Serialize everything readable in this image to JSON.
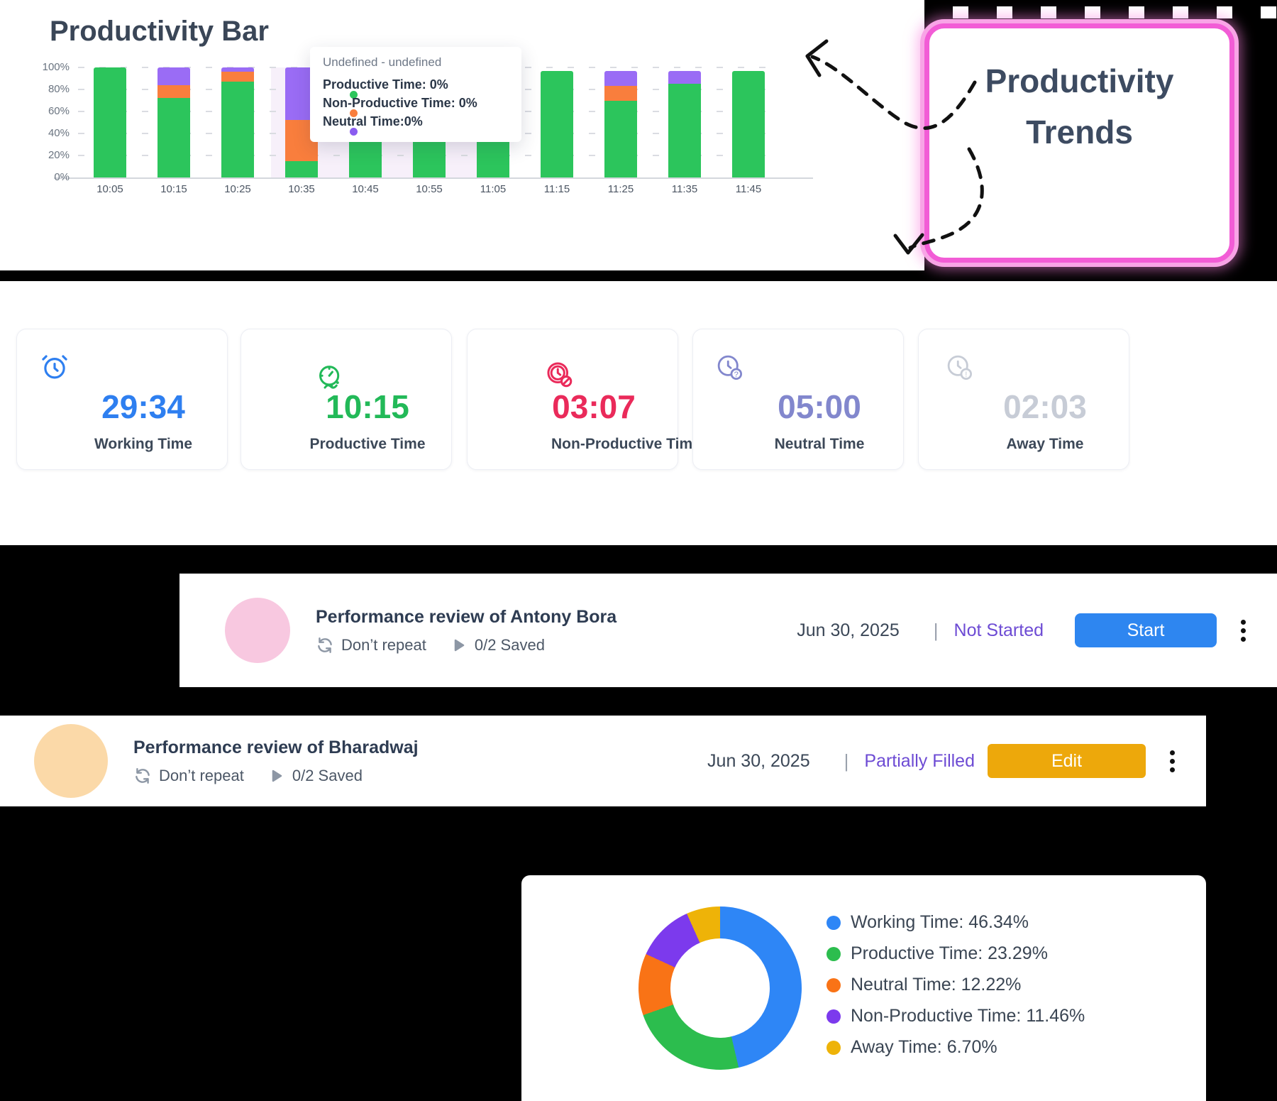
{
  "chart_data": [
    {
      "type": "bar",
      "stacked": true,
      "title": "Productivity Bar",
      "categories": [
        "10:05",
        "10:15",
        "10:25",
        "10:35",
        "10:45",
        "10:55",
        "11:05",
        "11:15",
        "11:25",
        "11:35",
        "11:45"
      ],
      "series": [
        {
          "name": "Productive Time",
          "color": "#2cc55c",
          "values": [
            100,
            72,
            87,
            15,
            42,
            42,
            97,
            97,
            70,
            85,
            97
          ]
        },
        {
          "name": "Non-Productive Time",
          "color": "#f97e3d",
          "values": [
            0,
            12,
            9,
            37,
            0,
            0,
            0,
            0,
            13,
            0,
            0
          ]
        },
        {
          "name": "Neutral Time",
          "color": "#9a6cf5",
          "values": [
            0,
            16,
            4,
            48,
            0,
            0,
            0,
            0,
            14,
            12,
            0
          ]
        }
      ],
      "yticks": [
        0,
        20,
        40,
        60,
        80,
        100
      ],
      "ytick_suffix": "%",
      "ylim": [
        0,
        100
      ],
      "grid": "dashed-horizontal",
      "legend_position": "none"
    },
    {
      "type": "donut",
      "legend_position": "right",
      "items": [
        {
          "label": "Working Time",
          "value": 46.34,
          "display": "46.34%",
          "color": "#2e86f6"
        },
        {
          "label": "Productive Time",
          "value": 23.29,
          "display": "23.29%",
          "color": "#2cbd4e"
        },
        {
          "label": "Neutral Time",
          "value": 12.22,
          "display": "12.22%",
          "color": "#f97316"
        },
        {
          "label": "Non-Productive Time",
          "value": 11.46,
          "display": "11.46%",
          "color": "#7c3aed"
        },
        {
          "label": "Away Time",
          "value": 6.7,
          "display": "6.70%",
          "color": "#eeb308"
        }
      ]
    }
  ],
  "tooltip": {
    "title": "Undefined - undefined",
    "lines": [
      {
        "text": "Productive Time: 0%",
        "color": "#2cc55c"
      },
      {
        "text": "Non-Productive Time: 0%",
        "color": "#f97e3d"
      },
      {
        "text": "Neutral Time:0%",
        "color": "#8a5cf0"
      }
    ]
  },
  "trends_box": {
    "line1": "Productivity",
    "line2": "Trends",
    "border_color": "#f25cd6"
  },
  "stats": {
    "cards": [
      {
        "icon": "alarm-clock-icon",
        "value": "29:34",
        "label": "Working Time",
        "color": "#2e7ff0"
      },
      {
        "icon": "productivity-gauge-icon",
        "value": "10:15",
        "label": "Productive Time",
        "color": "#22b958"
      },
      {
        "icon": "blocked-clock-icon",
        "value": "03:07",
        "label": "Non-Productive Time",
        "color": "#ea2a5a"
      },
      {
        "icon": "question-clock-icon",
        "value": "05:00",
        "label": "Neutral Time",
        "color": "#8287cd"
      },
      {
        "icon": "away-clock-icon",
        "value": "02:03",
        "label": "Away Time",
        "color": "#c7ccd6"
      }
    ]
  },
  "tasks": [
    {
      "title": "Performance review of Antony Bora",
      "repeat": "Don’t repeat",
      "saved": "0/2 Saved",
      "date": "Jun 30, 2025",
      "divider": "|",
      "status": "Not Started",
      "status_color": "#6d4bd4",
      "action": "Start",
      "action_color": "#2e86f0",
      "avatar_color": "#f8c8e0"
    },
    {
      "title": "Performance review of Bharadwaj",
      "repeat": "Don’t repeat",
      "saved": "0/2 Saved",
      "date": "Jun 30, 2025",
      "divider": "|",
      "status": "Partially Filled",
      "status_color": "#6d4bd4",
      "action": "Edit",
      "action_color": "#eda80b",
      "avatar_color": "#fbd9a8"
    }
  ]
}
